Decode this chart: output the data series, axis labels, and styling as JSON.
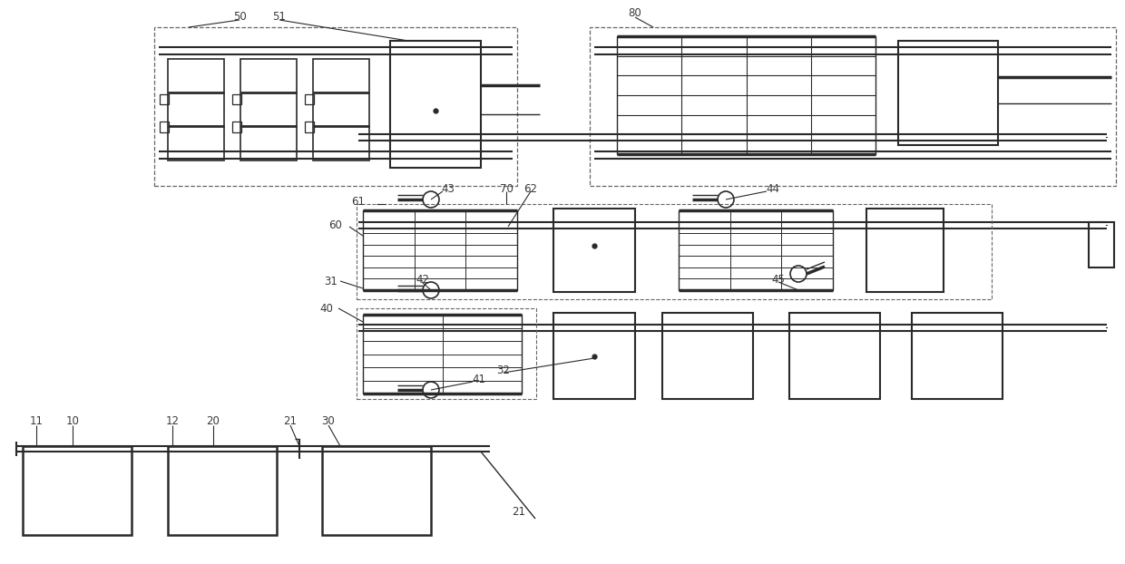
{
  "bg_color": "#ffffff",
  "line_color": "#2a2a2a",
  "dash_color": "#666666",
  "label_color": "#3a3a3a",
  "figsize": [
    12.4,
    6.22
  ],
  "dpi": 100
}
